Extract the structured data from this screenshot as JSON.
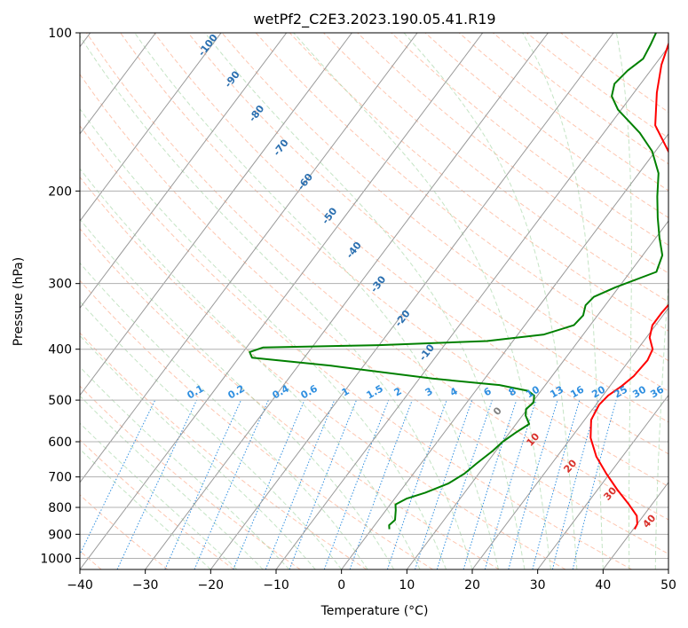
{
  "chart_data": {
    "type": "line",
    "chart_kind": "Skew-T log-P diagram",
    "title": "wetPf2_C2E3.2023.190.05.41.R19",
    "xlabel": "Temperature (°C)",
    "ylabel": "Pressure (hPa)",
    "xlim": [
      -40,
      50
    ],
    "ylim": [
      1050,
      100
    ],
    "x_ticks": [
      -40,
      -30,
      -20,
      -10,
      0,
      10,
      20,
      30,
      40,
      50
    ],
    "y_ticks": [
      100,
      200,
      300,
      400,
      500,
      600,
      700,
      800,
      900,
      1000
    ],
    "grid": true,
    "colors": {
      "temperature": "#ff0000",
      "dewpoint": "#008000",
      "dry_adiabat": "#2a6fb0",
      "moist_adiabat": "#d9302a",
      "mixing_ratio": "#2f8fe0",
      "grid": "#b0b0b0"
    },
    "series": [
      {
        "name": "Temperature",
        "color": "#ff0000",
        "points": [
          [
            40.2,
            880
          ],
          [
            40.0,
            860
          ],
          [
            39.0,
            830
          ],
          [
            36.5,
            790
          ],
          [
            33.0,
            740
          ],
          [
            29.5,
            690
          ],
          [
            26.0,
            640
          ],
          [
            23.0,
            590
          ],
          [
            21.0,
            545
          ],
          [
            20.5,
            510
          ],
          [
            20.8,
            490
          ],
          [
            21.8,
            470
          ],
          [
            22.5,
            450
          ],
          [
            22.8,
            420
          ],
          [
            22.3,
            400
          ],
          [
            20.5,
            380
          ],
          [
            19.5,
            360
          ],
          [
            19.5,
            340
          ],
          [
            19.8,
            320
          ],
          [
            18.0,
            300
          ],
          [
            16.0,
            280
          ],
          [
            13.5,
            250
          ],
          [
            10.5,
            220
          ],
          [
            6.5,
            195
          ],
          [
            2.5,
            170
          ],
          [
            -3.0,
            150
          ],
          [
            -6.5,
            130
          ],
          [
            -9.0,
            115
          ],
          [
            -11.0,
            100
          ]
        ]
      },
      {
        "name": "Dewpoint",
        "color": "#008000",
        "points": [
          [
            2.7,
            880
          ],
          [
            2.2,
            865
          ],
          [
            2.5,
            845
          ],
          [
            1.5,
            810
          ],
          [
            0.8,
            790
          ],
          [
            1.8,
            770
          ],
          [
            4.0,
            750
          ],
          [
            6.5,
            720
          ],
          [
            7.8,
            690
          ],
          [
            8.5,
            660
          ],
          [
            9.5,
            625
          ],
          [
            10.0,
            600
          ],
          [
            11.0,
            575
          ],
          [
            12.0,
            555
          ],
          [
            10.5,
            535
          ],
          [
            9.8,
            520
          ],
          [
            10.2,
            505
          ],
          [
            9.5,
            490
          ],
          [
            8.0,
            480
          ],
          [
            3.0,
            468
          ],
          [
            -8.0,
            455
          ],
          [
            -25.0,
            430
          ],
          [
            -38.0,
            415
          ],
          [
            -39.0,
            405
          ],
          [
            -37.5,
            397
          ],
          [
            -20.0,
            393
          ],
          [
            -4.0,
            386
          ],
          [
            4.0,
            375
          ],
          [
            7.5,
            360
          ],
          [
            7.8,
            345
          ],
          [
            7.0,
            330
          ],
          [
            7.3,
            318
          ],
          [
            9.5,
            305
          ],
          [
            14.0,
            285
          ],
          [
            13.0,
            265
          ],
          [
            10.5,
            245
          ],
          [
            8.0,
            225
          ],
          [
            5.5,
            205
          ],
          [
            3.0,
            185
          ],
          [
            -0.5,
            168
          ],
          [
            -4.5,
            155
          ],
          [
            -10.5,
            140
          ],
          [
            -13.0,
            132
          ],
          [
            -14.0,
            125
          ],
          [
            -13.5,
            118
          ],
          [
            -12.5,
            112
          ],
          [
            -13.0,
            105
          ],
          [
            -13.5,
            100
          ]
        ]
      }
    ],
    "dry_adiabat_labels": [
      "-100",
      "-90",
      "-80",
      "-70",
      "-60",
      "-50",
      "-40",
      "-30",
      "-20",
      "-10"
    ],
    "moist_adiabat_labels": [
      "0",
      "10",
      "20",
      "30",
      "40"
    ],
    "mixing_ratio_labels": [
      "0.1",
      "0.2",
      "0.4",
      "0.6",
      "1",
      "1.5",
      "2",
      "3",
      "4",
      "6",
      "8",
      "10",
      "13",
      "16",
      "20",
      "25",
      "30",
      "36"
    ]
  }
}
